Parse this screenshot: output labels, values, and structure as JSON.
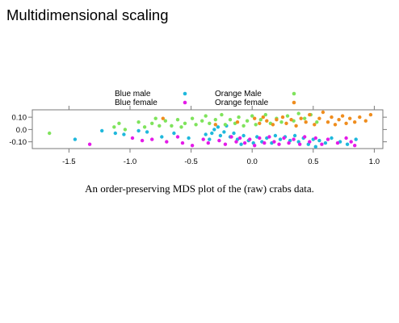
{
  "slide": {
    "title": "Multidimensional scaling",
    "caption": "An order-preserving MDS plot of the (raw) crabs data."
  },
  "chart_data": {
    "type": "scatter",
    "title": "",
    "xlabel": "",
    "ylabel": "",
    "xlim": [
      -1.8,
      1.07
    ],
    "ylim": [
      -0.155,
      0.16
    ],
    "x_ticks": [
      -1.5,
      -1.0,
      -0.5,
      0.0,
      0.5,
      1.0
    ],
    "x_tick_labels": [
      "-1.5",
      "-1.0",
      "-0.5",
      "0.0",
      "0.5",
      "1.0"
    ],
    "y_ticks": [
      0.1,
      0.0,
      -0.1
    ],
    "y_tick_labels": [
      "0.10",
      "0.0",
      "-0.10"
    ],
    "grid": false,
    "legend_position": "top",
    "series": [
      {
        "name": "Blue male",
        "color": "#1fb8dc",
        "points": [
          [
            -1.45,
            -0.08
          ],
          [
            -1.23,
            -0.01
          ],
          [
            -1.12,
            -0.03
          ],
          [
            -1.05,
            -0.04
          ],
          [
            -0.93,
            -0.01
          ],
          [
            -0.86,
            -0.02
          ],
          [
            -0.74,
            -0.06
          ],
          [
            -0.64,
            -0.03
          ],
          [
            -0.52,
            -0.07
          ],
          [
            -0.38,
            -0.04
          ],
          [
            -0.35,
            -0.08
          ],
          [
            -0.33,
            -0.03
          ],
          [
            -0.31,
            0.0
          ],
          [
            -0.28,
            0.02
          ],
          [
            -0.26,
            -0.05
          ],
          [
            -0.23,
            -0.02
          ],
          [
            -0.21,
            0.03
          ],
          [
            -0.18,
            -0.06
          ],
          [
            -0.15,
            -0.03
          ],
          [
            -0.12,
            -0.08
          ],
          [
            -0.09,
            -0.12
          ],
          [
            -0.07,
            -0.05
          ],
          [
            -0.03,
            -0.09
          ],
          [
            0.01,
            -0.11
          ],
          [
            0.04,
            -0.06
          ],
          [
            0.08,
            -0.1
          ],
          [
            0.12,
            -0.07
          ],
          [
            0.16,
            -0.11
          ],
          [
            0.19,
            -0.05
          ],
          [
            0.23,
            -0.08
          ],
          [
            0.27,
            -0.06
          ],
          [
            0.31,
            -0.09
          ],
          [
            0.35,
            -0.05
          ],
          [
            0.38,
            -0.1
          ],
          [
            0.42,
            -0.07
          ],
          [
            0.46,
            -0.12
          ],
          [
            0.5,
            -0.08
          ],
          [
            0.52,
            -0.14
          ],
          [
            0.55,
            -0.09
          ],
          [
            0.6,
            -0.11
          ],
          [
            0.65,
            -0.07
          ],
          [
            0.72,
            -0.1
          ],
          [
            0.78,
            -0.12
          ],
          [
            0.85,
            -0.08
          ]
        ]
      },
      {
        "name": "Blue female",
        "color": "#e41be8",
        "points": [
          [
            -1.33,
            -0.12
          ],
          [
            -0.98,
            -0.07
          ],
          [
            -0.9,
            -0.09
          ],
          [
            -0.82,
            -0.08
          ],
          [
            -0.7,
            -0.1
          ],
          [
            -0.61,
            -0.06
          ],
          [
            -0.57,
            -0.11
          ],
          [
            -0.49,
            -0.13
          ],
          [
            -0.4,
            -0.08
          ],
          [
            -0.36,
            -0.11
          ],
          [
            -0.27,
            -0.09
          ],
          [
            -0.22,
            -0.12
          ],
          [
            -0.17,
            -0.06
          ],
          [
            -0.13,
            -0.1
          ],
          [
            -0.1,
            -0.07
          ],
          [
            -0.06,
            -0.11
          ],
          [
            -0.02,
            -0.08
          ],
          [
            0.02,
            -0.13
          ],
          [
            0.06,
            -0.07
          ],
          [
            0.1,
            -0.11
          ],
          [
            0.14,
            -0.06
          ],
          [
            0.18,
            -0.1
          ],
          [
            0.22,
            -0.12
          ],
          [
            0.26,
            -0.07
          ],
          [
            0.3,
            -0.11
          ],
          [
            0.34,
            -0.08
          ],
          [
            0.39,
            -0.12
          ],
          [
            0.43,
            -0.06
          ],
          [
            0.47,
            -0.1
          ],
          [
            0.52,
            -0.07
          ],
          [
            0.57,
            -0.12
          ],
          [
            0.62,
            -0.08
          ],
          [
            0.7,
            -0.11
          ],
          [
            0.77,
            -0.07
          ],
          [
            0.81,
            -0.1
          ],
          [
            0.84,
            -0.13
          ]
        ]
      },
      {
        "name": "Orange Male",
        "color": "#7fe35c",
        "points": [
          [
            -1.66,
            -0.03
          ],
          [
            -1.13,
            0.02
          ],
          [
            -1.09,
            0.05
          ],
          [
            -1.04,
            0.0
          ],
          [
            -0.93,
            0.06
          ],
          [
            -0.88,
            0.02
          ],
          [
            -0.82,
            0.05
          ],
          [
            -0.79,
            0.09
          ],
          [
            -0.76,
            0.03
          ],
          [
            -0.71,
            0.07
          ],
          [
            -0.66,
            0.03
          ],
          [
            -0.61,
            0.08
          ],
          [
            -0.58,
            0.02
          ],
          [
            -0.55,
            0.05
          ],
          [
            -0.49,
            0.09
          ],
          [
            -0.46,
            0.04
          ],
          [
            -0.41,
            0.07
          ],
          [
            -0.38,
            0.11
          ],
          [
            -0.35,
            0.05
          ],
          [
            -0.3,
            0.08
          ],
          [
            -0.25,
            0.12
          ],
          [
            -0.22,
            0.04
          ],
          [
            -0.18,
            0.08
          ],
          [
            -0.14,
            0.05
          ],
          [
            -0.11,
            0.1
          ],
          [
            -0.07,
            0.03
          ],
          [
            -0.04,
            0.07
          ],
          [
            0.0,
            0.11
          ],
          [
            0.03,
            0.04
          ],
          [
            0.07,
            0.08
          ],
          [
            0.11,
            0.12
          ],
          [
            0.15,
            0.05
          ],
          [
            0.2,
            0.09
          ],
          [
            0.24,
            0.06
          ],
          [
            0.29,
            0.11
          ],
          [
            0.34,
            0.07
          ],
          [
            0.38,
            0.13
          ],
          [
            0.43,
            0.09
          ],
          [
            0.48,
            0.12
          ],
          [
            0.53,
            0.06
          ]
        ]
      },
      {
        "name": "Orange female",
        "color": "#ef8d1e",
        "points": [
          [
            -0.73,
            0.09
          ],
          [
            -0.3,
            0.04
          ],
          [
            -0.12,
            0.06
          ],
          [
            0.02,
            0.09
          ],
          [
            0.06,
            0.05
          ],
          [
            0.09,
            0.1
          ],
          [
            0.12,
            0.07
          ],
          [
            0.17,
            0.04
          ],
          [
            0.2,
            0.08
          ],
          [
            0.25,
            0.1
          ],
          [
            0.28,
            0.05
          ],
          [
            0.32,
            0.08
          ],
          [
            0.36,
            0.03
          ],
          [
            0.4,
            0.09
          ],
          [
            0.44,
            0.06
          ],
          [
            0.47,
            0.12
          ],
          [
            0.51,
            0.04
          ],
          [
            0.55,
            0.09
          ],
          [
            0.58,
            0.14
          ],
          [
            0.62,
            0.06
          ],
          [
            0.65,
            0.1
          ],
          [
            0.68,
            0.04
          ],
          [
            0.71,
            0.08
          ],
          [
            0.74,
            0.11
          ],
          [
            0.77,
            0.05
          ],
          [
            0.8,
            0.09
          ],
          [
            0.84,
            0.06
          ],
          [
            0.88,
            0.1
          ],
          [
            0.93,
            0.07
          ],
          [
            0.97,
            0.12
          ]
        ]
      }
    ]
  }
}
